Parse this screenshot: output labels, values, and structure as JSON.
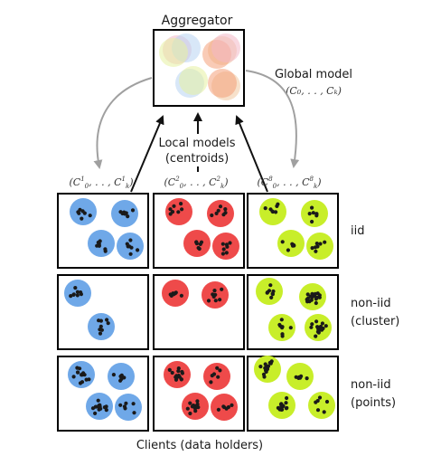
{
  "aggregator": {
    "title": "Aggregator",
    "blend_colors": [
      "#f2b8c6",
      "#b8d3f2",
      "#e6f0a0",
      "#f0c8a0",
      "#f4a07a"
    ]
  },
  "labels": {
    "global_model": "Global model",
    "global_model_math": "(C₀, . . , Cₖ)",
    "local_models_line1": "Local models",
    "local_models_line2": "(centroids)",
    "clients": "Clients (data holders)"
  },
  "client_math": [
    {
      "base": "(C",
      "sup": "1",
      "sub": "0",
      "mid": ", . . , C",
      "sup2": "1",
      "sub2": "k",
      "end": ")"
    },
    {
      "base": "(C",
      "sup": "2",
      "sub": "0",
      "mid": ", . . , C",
      "sup2": "2",
      "sub2": "k",
      "end": ")"
    },
    {
      "base": "(C",
      "sup": "8",
      "sub": "0",
      "mid": ", . . , C",
      "sup2": "8",
      "sub2": "k",
      "end": ")"
    }
  ],
  "rows": [
    {
      "label_lines": [
        "iid"
      ]
    },
    {
      "label_lines": [
        "non-iid",
        "(cluster)"
      ]
    },
    {
      "label_lines": [
        "non-iid",
        "(points)"
      ]
    }
  ],
  "client_colors": [
    "#6fa8e8",
    "#ee4a4a",
    "#c8ee2a"
  ],
  "dot_color": "#1a1a1a",
  "arrow_color_gray": "#a0a0a0",
  "arrow_color_black": "#111111"
}
